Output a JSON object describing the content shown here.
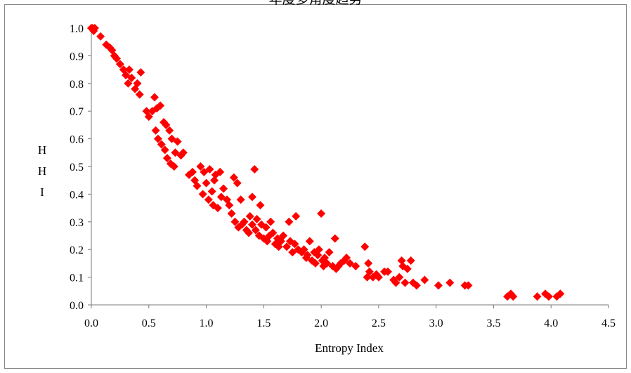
{
  "chart_data": {
    "type": "scatter",
    "title": "年度多角度趋势",
    "xlabel": "Entropy Index",
    "ylabel_chars": [
      "H",
      "H",
      "I"
    ],
    "xlim": [
      0.0,
      4.5
    ],
    "ylim": [
      0.0,
      1.0
    ],
    "xticks": [
      "0.0",
      "0.5",
      "1.0",
      "1.5",
      "2.0",
      "2.5",
      "3.0",
      "3.5",
      "4.0",
      "4.5"
    ],
    "yticks": [
      "0.0",
      "0.1",
      "0.2",
      "0.3",
      "0.4",
      "0.5",
      "0.6",
      "0.7",
      "0.8",
      "0.9",
      "1.0"
    ],
    "grid": false,
    "marker_color": "#ff0000",
    "marker_shape": "diamond",
    "points": [
      [
        0.0,
        1.0
      ],
      [
        0.01,
        1.0
      ],
      [
        0.02,
        0.99
      ],
      [
        0.03,
        1.0
      ],
      [
        0.08,
        0.97
      ],
      [
        0.13,
        0.94
      ],
      [
        0.16,
        0.93
      ],
      [
        0.18,
        0.92
      ],
      [
        0.2,
        0.9
      ],
      [
        0.22,
        0.89
      ],
      [
        0.25,
        0.87
      ],
      [
        0.28,
        0.85
      ],
      [
        0.3,
        0.83
      ],
      [
        0.33,
        0.85
      ],
      [
        0.35,
        0.82
      ],
      [
        0.32,
        0.8
      ],
      [
        0.38,
        0.78
      ],
      [
        0.4,
        0.8
      ],
      [
        0.42,
        0.76
      ],
      [
        0.43,
        0.84
      ],
      [
        0.48,
        0.7
      ],
      [
        0.5,
        0.68
      ],
      [
        0.53,
        0.7
      ],
      [
        0.55,
        0.75
      ],
      [
        0.57,
        0.71
      ],
      [
        0.6,
        0.72
      ],
      [
        0.56,
        0.63
      ],
      [
        0.58,
        0.6
      ],
      [
        0.61,
        0.58
      ],
      [
        0.63,
        0.66
      ],
      [
        0.64,
        0.56
      ],
      [
        0.65,
        0.65
      ],
      [
        0.66,
        0.53
      ],
      [
        0.68,
        0.63
      ],
      [
        0.69,
        0.51
      ],
      [
        0.7,
        0.6
      ],
      [
        0.72,
        0.5
      ],
      [
        0.73,
        0.55
      ],
      [
        0.75,
        0.59
      ],
      [
        0.78,
        0.54
      ],
      [
        0.8,
        0.55
      ],
      [
        0.85,
        0.47
      ],
      [
        0.88,
        0.48
      ],
      [
        0.9,
        0.45
      ],
      [
        0.92,
        0.43
      ],
      [
        0.95,
        0.5
      ],
      [
        0.97,
        0.4
      ],
      [
        0.98,
        0.48
      ],
      [
        1.0,
        0.44
      ],
      [
        1.02,
        0.38
      ],
      [
        1.03,
        0.49
      ],
      [
        1.05,
        0.41
      ],
      [
        1.06,
        0.36
      ],
      [
        1.07,
        0.45
      ],
      [
        1.08,
        0.47
      ],
      [
        1.1,
        0.35
      ],
      [
        1.12,
        0.48
      ],
      [
        1.13,
        0.39
      ],
      [
        1.15,
        0.42
      ],
      [
        1.18,
        0.38
      ],
      [
        1.2,
        0.36
      ],
      [
        1.22,
        0.33
      ],
      [
        1.24,
        0.46
      ],
      [
        1.25,
        0.3
      ],
      [
        1.27,
        0.44
      ],
      [
        1.28,
        0.28
      ],
      [
        1.3,
        0.38
      ],
      [
        1.31,
        0.29
      ],
      [
        1.33,
        0.3
      ],
      [
        1.35,
        0.27
      ],
      [
        1.37,
        0.26
      ],
      [
        1.38,
        0.32
      ],
      [
        1.4,
        0.39
      ],
      [
        1.4,
        0.29
      ],
      [
        1.42,
        0.49
      ],
      [
        1.43,
        0.27
      ],
      [
        1.44,
        0.31
      ],
      [
        1.46,
        0.25
      ],
      [
        1.47,
        0.36
      ],
      [
        1.48,
        0.29
      ],
      [
        1.5,
        0.24
      ],
      [
        1.52,
        0.28
      ],
      [
        1.53,
        0.23
      ],
      [
        1.55,
        0.25
      ],
      [
        1.56,
        0.3
      ],
      [
        1.58,
        0.26
      ],
      [
        1.6,
        0.22
      ],
      [
        1.62,
        0.24
      ],
      [
        1.63,
        0.21
      ],
      [
        1.65,
        0.23
      ],
      [
        1.67,
        0.25
      ],
      [
        1.7,
        0.21
      ],
      [
        1.72,
        0.3
      ],
      [
        1.73,
        0.23
      ],
      [
        1.75,
        0.19
      ],
      [
        1.77,
        0.22
      ],
      [
        1.78,
        0.32
      ],
      [
        1.8,
        0.2
      ],
      [
        1.83,
        0.19
      ],
      [
        1.85,
        0.2
      ],
      [
        1.87,
        0.17
      ],
      [
        1.88,
        0.18
      ],
      [
        1.9,
        0.23
      ],
      [
        1.92,
        0.16
      ],
      [
        1.94,
        0.19
      ],
      [
        1.95,
        0.15
      ],
      [
        1.97,
        0.18
      ],
      [
        1.98,
        0.2
      ],
      [
        2.0,
        0.33
      ],
      [
        2.01,
        0.16
      ],
      [
        2.02,
        0.14
      ],
      [
        2.03,
        0.17
      ],
      [
        2.05,
        0.15
      ],
      [
        2.07,
        0.19
      ],
      [
        2.1,
        0.14
      ],
      [
        2.12,
        0.24
      ],
      [
        2.13,
        0.13
      ],
      [
        2.15,
        0.14
      ],
      [
        2.17,
        0.15
      ],
      [
        2.2,
        0.16
      ],
      [
        2.22,
        0.17
      ],
      [
        2.25,
        0.15
      ],
      [
        2.3,
        0.14
      ],
      [
        2.38,
        0.21
      ],
      [
        2.4,
        0.1
      ],
      [
        2.41,
        0.15
      ],
      [
        2.42,
        0.12
      ],
      [
        2.45,
        0.1
      ],
      [
        2.48,
        0.11
      ],
      [
        2.5,
        0.1
      ],
      [
        2.55,
        0.12
      ],
      [
        2.58,
        0.12
      ],
      [
        2.63,
        0.09
      ],
      [
        2.65,
        0.08
      ],
      [
        2.68,
        0.1
      ],
      [
        2.7,
        0.16
      ],
      [
        2.71,
        0.14
      ],
      [
        2.73,
        0.08
      ],
      [
        2.75,
        0.13
      ],
      [
        2.78,
        0.16
      ],
      [
        2.8,
        0.08
      ],
      [
        2.83,
        0.07
      ],
      [
        2.9,
        0.09
      ],
      [
        3.02,
        0.07
      ],
      [
        3.12,
        0.08
      ],
      [
        3.25,
        0.07
      ],
      [
        3.28,
        0.07
      ],
      [
        3.62,
        0.03
      ],
      [
        3.65,
        0.04
      ],
      [
        3.67,
        0.03
      ],
      [
        3.88,
        0.03
      ],
      [
        3.95,
        0.04
      ],
      [
        3.98,
        0.03
      ],
      [
        4.05,
        0.03
      ],
      [
        4.08,
        0.04
      ]
    ]
  }
}
